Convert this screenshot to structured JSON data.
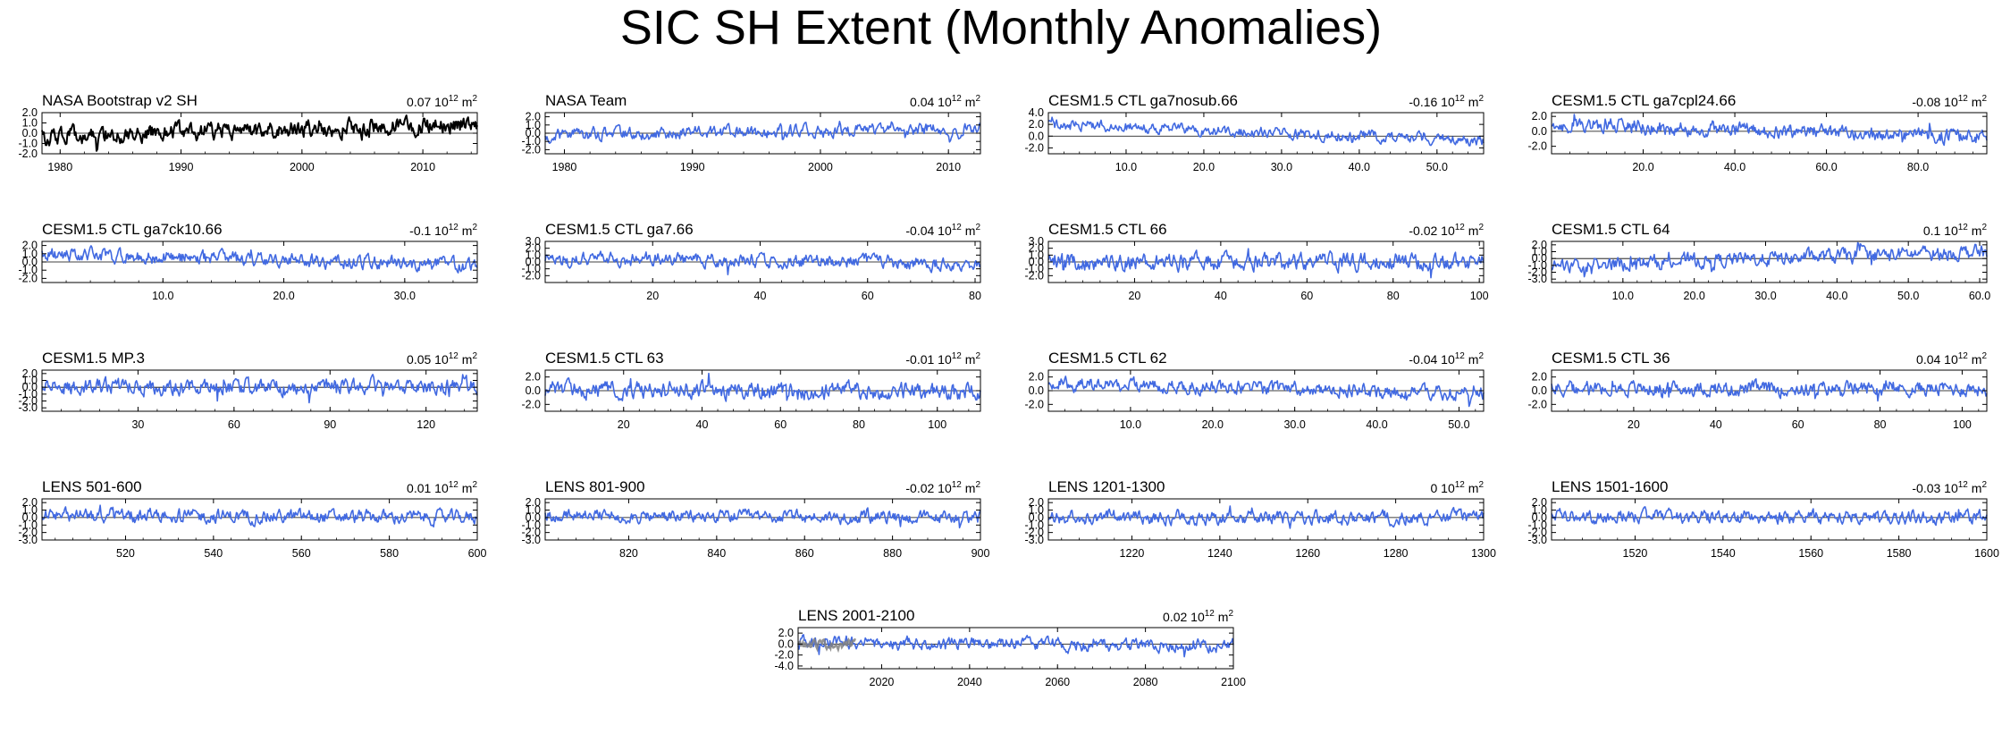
{
  "title": "SIC SH Extent (Monthly Anomalies)",
  "colors": {
    "obs": "#000000",
    "model": "#4169e1",
    "reference": "#808080",
    "axis": "#000000"
  },
  "units": {
    "base": "10",
    "exp": "12",
    "unit": "m",
    "unit_exp": "2"
  },
  "chart_data": [
    {
      "type": "line",
      "title": "NASA Bootstrap v2 SH",
      "mean": "0.07",
      "color": "obs",
      "xlim": [
        1978.5,
        2014.5
      ],
      "ylim": [
        -2.0,
        2.0
      ],
      "xticks": [
        1980,
        1990,
        2000,
        2010
      ],
      "xtick_labels": [
        "1980",
        "1990",
        "2000",
        "2010"
      ],
      "yticks": [
        -2.0,
        -1.0,
        0.0,
        1.0,
        2.0
      ],
      "ytick_labels": [
        "-2.0",
        "-1.0",
        "0.0",
        "1.0",
        "2.0"
      ],
      "amp": 0.55,
      "seed": 11,
      "trend": [
        -0.3,
        0.9
      ]
    },
    {
      "type": "line",
      "title": "NASA Team",
      "mean": "0.04",
      "color": "model",
      "xlim": [
        1978.5,
        2012.5
      ],
      "ylim": [
        -2.5,
        2.5
      ],
      "xticks": [
        1980,
        1990,
        2000,
        2010
      ],
      "xtick_labels": [
        "1980",
        "1990",
        "2000",
        "2010"
      ],
      "yticks": [
        -2.0,
        -1.0,
        0.0,
        1.0,
        2.0
      ],
      "ytick_labels": [
        "-2.0",
        "-1.0",
        "0.0",
        "1.0",
        "2.0"
      ],
      "amp": 0.5,
      "seed": 12,
      "trend": [
        -0.2,
        0.6
      ]
    },
    {
      "type": "line",
      "title": "CESM1.5 CTL ga7nosub.66",
      "mean": "-0.16",
      "color": "model",
      "xlim": [
        0,
        56
      ],
      "ylim": [
        -3.0,
        4.0
      ],
      "xticks": [
        10,
        20,
        30,
        40,
        50
      ],
      "xtick_labels": [
        "10.0",
        "20.0",
        "30.0",
        "40.0",
        "50.0"
      ],
      "yticks": [
        -2.0,
        0.0,
        2.0,
        4.0
      ],
      "ytick_labels": [
        "-2.0",
        "0.0",
        "2.0",
        "4.0"
      ],
      "amp": 0.6,
      "seed": 13,
      "trend": [
        2.0,
        -0.8
      ]
    },
    {
      "type": "line",
      "title": "CESM1.5 CTL ga7cpl24.66",
      "mean": "-0.08",
      "color": "model",
      "xlim": [
        0,
        95
      ],
      "ylim": [
        -3.0,
        2.5
      ],
      "xticks": [
        20,
        40,
        60,
        80
      ],
      "xtick_labels": [
        "20.0",
        "40.0",
        "60.0",
        "80.0"
      ],
      "yticks": [
        -2.0,
        0.0,
        2.0
      ],
      "ytick_labels": [
        "-2.0",
        "0.0",
        "2.0"
      ],
      "amp": 0.65,
      "seed": 14,
      "trend": [
        1.0,
        -0.8
      ]
    },
    {
      "type": "line",
      "title": "CESM1.5 CTL ga7ck10.66",
      "mean": "-0.1",
      "color": "model",
      "xlim": [
        0,
        36
      ],
      "ylim": [
        -2.5,
        2.5
      ],
      "xticks": [
        10,
        20,
        30
      ],
      "xtick_labels": [
        "10.0",
        "20.0",
        "30.0"
      ],
      "yticks": [
        -2.0,
        -1.0,
        0.0,
        1.0,
        2.0
      ],
      "ytick_labels": [
        "-2.0",
        "-1.0",
        "0.0",
        "1.0",
        "2.0"
      ],
      "amp": 0.55,
      "seed": 15,
      "trend": [
        1.0,
        -0.4
      ]
    },
    {
      "type": "line",
      "title": "CESM1.5 CTL ga7.66",
      "mean": "-0.04",
      "color": "model",
      "xlim": [
        0,
        81
      ],
      "ylim": [
        -3.0,
        3.0
      ],
      "xticks": [
        20,
        40,
        60,
        80
      ],
      "xtick_labels": [
        "20",
        "40",
        "60",
        "80"
      ],
      "yticks": [
        -2.0,
        -1.0,
        0.0,
        1.0,
        2.0,
        3.0
      ],
      "ytick_labels": [
        "-2.0",
        "-1.0",
        "0.0",
        "1.0",
        "2.0",
        "3.0"
      ],
      "amp": 0.65,
      "seed": 16,
      "trend": [
        0.6,
        -0.2
      ]
    },
    {
      "type": "line",
      "title": "CESM1.5 CTL 66",
      "mean": "-0.02",
      "color": "model",
      "xlim": [
        0,
        101
      ],
      "ylim": [
        -3.0,
        3.0
      ],
      "xticks": [
        20,
        40,
        60,
        80,
        100
      ],
      "xtick_labels": [
        "20",
        "40",
        "60",
        "80",
        "100"
      ],
      "yticks": [
        -2.0,
        -1.0,
        0.0,
        1.0,
        2.0,
        3.0
      ],
      "ytick_labels": [
        "-2.0",
        "-1.0",
        "0.0",
        "1.0",
        "2.0",
        "3.0"
      ],
      "amp": 0.8,
      "seed": 17,
      "trend": [
        0.0,
        0.0
      ]
    },
    {
      "type": "line",
      "title": "CESM1.5 CTL 64",
      "mean": "0.1",
      "color": "model",
      "xlim": [
        0,
        61
      ],
      "ylim": [
        -3.5,
        2.5
      ],
      "xticks": [
        10,
        20,
        30,
        40,
        50,
        60
      ],
      "xtick_labels": [
        "10.0",
        "20.0",
        "30.0",
        "40.0",
        "50.0",
        "60.0"
      ],
      "yticks": [
        -3.0,
        -2.0,
        -1.0,
        0.0,
        1.0,
        2.0
      ],
      "ytick_labels": [
        "-3.0",
        "-2.0",
        "-1.0",
        "0.0",
        "1.0",
        "2.0"
      ],
      "amp": 0.7,
      "seed": 18,
      "trend": [
        -1.0,
        1.0
      ]
    },
    {
      "type": "line",
      "title": "CESM1.5 MP.3",
      "mean": "0.05",
      "color": "model",
      "xlim": [
        0,
        136
      ],
      "ylim": [
        -3.5,
        2.5
      ],
      "xticks": [
        30,
        60,
        90,
        120
      ],
      "xtick_labels": [
        "30",
        "60",
        "90",
        "120"
      ],
      "yticks": [
        -3.0,
        -2.0,
        -1.0,
        0.0,
        1.0,
        2.0
      ],
      "ytick_labels": [
        "-3.0",
        "-2.0",
        "-1.0",
        "0.0",
        "1.0",
        "2.0"
      ],
      "amp": 0.75,
      "seed": 19,
      "trend": [
        0.0,
        0.2
      ]
    },
    {
      "type": "line",
      "title": "CESM1.5 CTL 63",
      "mean": "-0.01",
      "color": "model",
      "xlim": [
        0,
        111
      ],
      "ylim": [
        -3.0,
        3.0
      ],
      "xticks": [
        20,
        40,
        60,
        80,
        100
      ],
      "xtick_labels": [
        "20",
        "40",
        "60",
        "80",
        "100"
      ],
      "yticks": [
        -2.0,
        0.0,
        2.0
      ],
      "ytick_labels": [
        "-2.0",
        "0.0",
        "2.0"
      ],
      "amp": 0.8,
      "seed": 20,
      "trend": [
        0.2,
        -0.2
      ]
    },
    {
      "type": "line",
      "title": "CESM1.5 CTL 62",
      "mean": "-0.04",
      "color": "model",
      "xlim": [
        0,
        53
      ],
      "ylim": [
        -3.0,
        3.0
      ],
      "xticks": [
        10,
        20,
        30,
        40,
        50
      ],
      "xtick_labels": [
        "10.0",
        "20.0",
        "30.0",
        "40.0",
        "50.0"
      ],
      "yticks": [
        -2.0,
        0.0,
        2.0
      ],
      "ytick_labels": [
        "-2.0",
        "0.0",
        "2.0"
      ],
      "amp": 0.65,
      "seed": 21,
      "trend": [
        1.0,
        -0.4
      ]
    },
    {
      "type": "line",
      "title": "CESM1.5 CTL 36",
      "mean": "0.04",
      "color": "model",
      "xlim": [
        0,
        106
      ],
      "ylim": [
        -3.0,
        3.0
      ],
      "xticks": [
        20,
        40,
        60,
        80,
        100
      ],
      "xtick_labels": [
        "20",
        "40",
        "60",
        "80",
        "100"
      ],
      "yticks": [
        -2.0,
        0.0,
        2.0
      ],
      "ytick_labels": [
        "-2.0",
        "0.0",
        "2.0"
      ],
      "amp": 0.7,
      "seed": 22,
      "trend": [
        0.3,
        0.3
      ]
    },
    {
      "type": "line",
      "title": "LENS 501-600",
      "mean": "0.01",
      "color": "model",
      "xlim": [
        501,
        600
      ],
      "ylim": [
        -3.0,
        2.5
      ],
      "xticks": [
        520,
        540,
        560,
        580,
        600
      ],
      "xtick_labels": [
        "520",
        "540",
        "560",
        "580",
        "600"
      ],
      "yticks": [
        -3.0,
        -2.0,
        -1.0,
        0.0,
        1.0,
        2.0
      ],
      "ytick_labels": [
        "-3.0",
        "-2.0",
        "-1.0",
        "0.0",
        "1.0",
        "2.0"
      ],
      "amp": 0.6,
      "seed": 23,
      "trend": [
        0.3,
        0.0
      ]
    },
    {
      "type": "line",
      "title": "LENS 801-900",
      "mean": "-0.02",
      "color": "model",
      "xlim": [
        801,
        900
      ],
      "ylim": [
        -3.0,
        2.5
      ],
      "xticks": [
        820,
        840,
        860,
        880,
        900
      ],
      "xtick_labels": [
        "820",
        "840",
        "860",
        "880",
        "900"
      ],
      "yticks": [
        -3.0,
        -2.0,
        -1.0,
        0.0,
        1.0,
        2.0
      ],
      "ytick_labels": [
        "-3.0",
        "-2.0",
        "-1.0",
        "0.0",
        "1.0",
        "2.0"
      ],
      "amp": 0.55,
      "seed": 24,
      "trend": [
        0.2,
        0.0
      ]
    },
    {
      "type": "line",
      "title": "LENS 1201-1300",
      "mean": "0",
      "color": "model",
      "xlim": [
        1201,
        1300
      ],
      "ylim": [
        -3.0,
        2.5
      ],
      "xticks": [
        1220,
        1240,
        1260,
        1280,
        1300
      ],
      "xtick_labels": [
        "1220",
        "1240",
        "1260",
        "1280",
        "1300"
      ],
      "yticks": [
        -3.0,
        -2.0,
        -1.0,
        0.0,
        1.0,
        2.0
      ],
      "ytick_labels": [
        "-3.0",
        "-2.0",
        "-1.0",
        "0.0",
        "1.0",
        "2.0"
      ],
      "amp": 0.6,
      "seed": 25,
      "trend": [
        0.0,
        0.0
      ]
    },
    {
      "type": "line",
      "title": "LENS 1501-1600",
      "mean": "-0.03",
      "color": "model",
      "xlim": [
        1501,
        1600
      ],
      "ylim": [
        -3.0,
        2.5
      ],
      "xticks": [
        1520,
        1540,
        1560,
        1580,
        1600
      ],
      "xtick_labels": [
        "1520",
        "1540",
        "1560",
        "1580",
        "1600"
      ],
      "yticks": [
        -3.0,
        -2.0,
        -1.0,
        0.0,
        1.0,
        2.0
      ],
      "ytick_labels": [
        "-3.0",
        "-2.0",
        "-1.0",
        "0.0",
        "1.0",
        "2.0"
      ],
      "amp": 0.6,
      "seed": 26,
      "trend": [
        0.2,
        0.0
      ]
    },
    {
      "type": "line",
      "title": "LENS 2001-2100",
      "mean": "0.02",
      "color": "model",
      "xlim": [
        2001,
        2100
      ],
      "ylim": [
        -4.5,
        3.0
      ],
      "xticks": [
        2020,
        2040,
        2060,
        2080,
        2100
      ],
      "xtick_labels": [
        "2020",
        "2040",
        "2060",
        "2080",
        "2100"
      ],
      "yticks": [
        -4.0,
        -2.0,
        0.0,
        2.0
      ],
      "ytick_labels": [
        "-4.0",
        "-2.0",
        "0.0",
        "2.0"
      ],
      "amp": 0.75,
      "seed": 27,
      "trend": [
        0.3,
        -0.3
      ],
      "overlay": {
        "color": "reference",
        "xrange": [
          2001,
          2014
        ]
      }
    }
  ]
}
